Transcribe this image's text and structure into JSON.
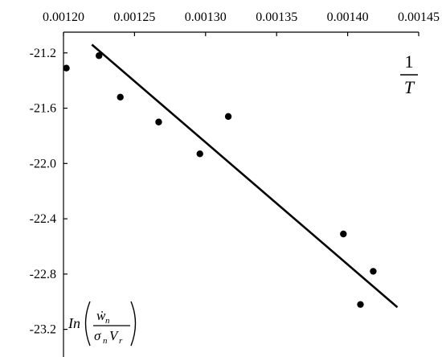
{
  "chart_data": {
    "type": "scatter",
    "title": "",
    "xlabel_numerator": "1",
    "xlabel_denominator": "T",
    "ylabel": {
      "prefix": "In",
      "numerator": "ẇ",
      "numerator_sub": "n",
      "denominator_a": "σ",
      "denominator_a_sub": "n",
      "denominator_b": "V",
      "denominator_b_sub": "r"
    },
    "xlim": [
      0.0012,
      0.00145
    ],
    "ylim": [
      -23.4,
      -21.05
    ],
    "x_ticks": [
      "0.00120",
      "0.00125",
      "0.00130",
      "0.00135",
      "0.00140",
      "0.00145"
    ],
    "y_ticks": [
      "-21.2",
      "-21.6",
      "-22.0",
      "-22.4",
      "-22.8",
      "-23.2"
    ],
    "points": [
      {
        "x": 0.001202,
        "y": -21.31
      },
      {
        "x": 0.001225,
        "y": -21.22
      },
      {
        "x": 0.00124,
        "y": -21.52
      },
      {
        "x": 0.001267,
        "y": -21.7
      },
      {
        "x": 0.001296,
        "y": -21.93
      },
      {
        "x": 0.001316,
        "y": -21.66
      },
      {
        "x": 0.001397,
        "y": -22.51
      },
      {
        "x": 0.001409,
        "y": -23.02
      },
      {
        "x": 0.001418,
        "y": -22.78
      }
    ],
    "fit_line": {
      "x": [
        0.00122,
        0.001435
      ],
      "y": [
        -21.14,
        -23.04
      ]
    },
    "grid": false,
    "legend": "none",
    "x_axis_position": "top"
  }
}
